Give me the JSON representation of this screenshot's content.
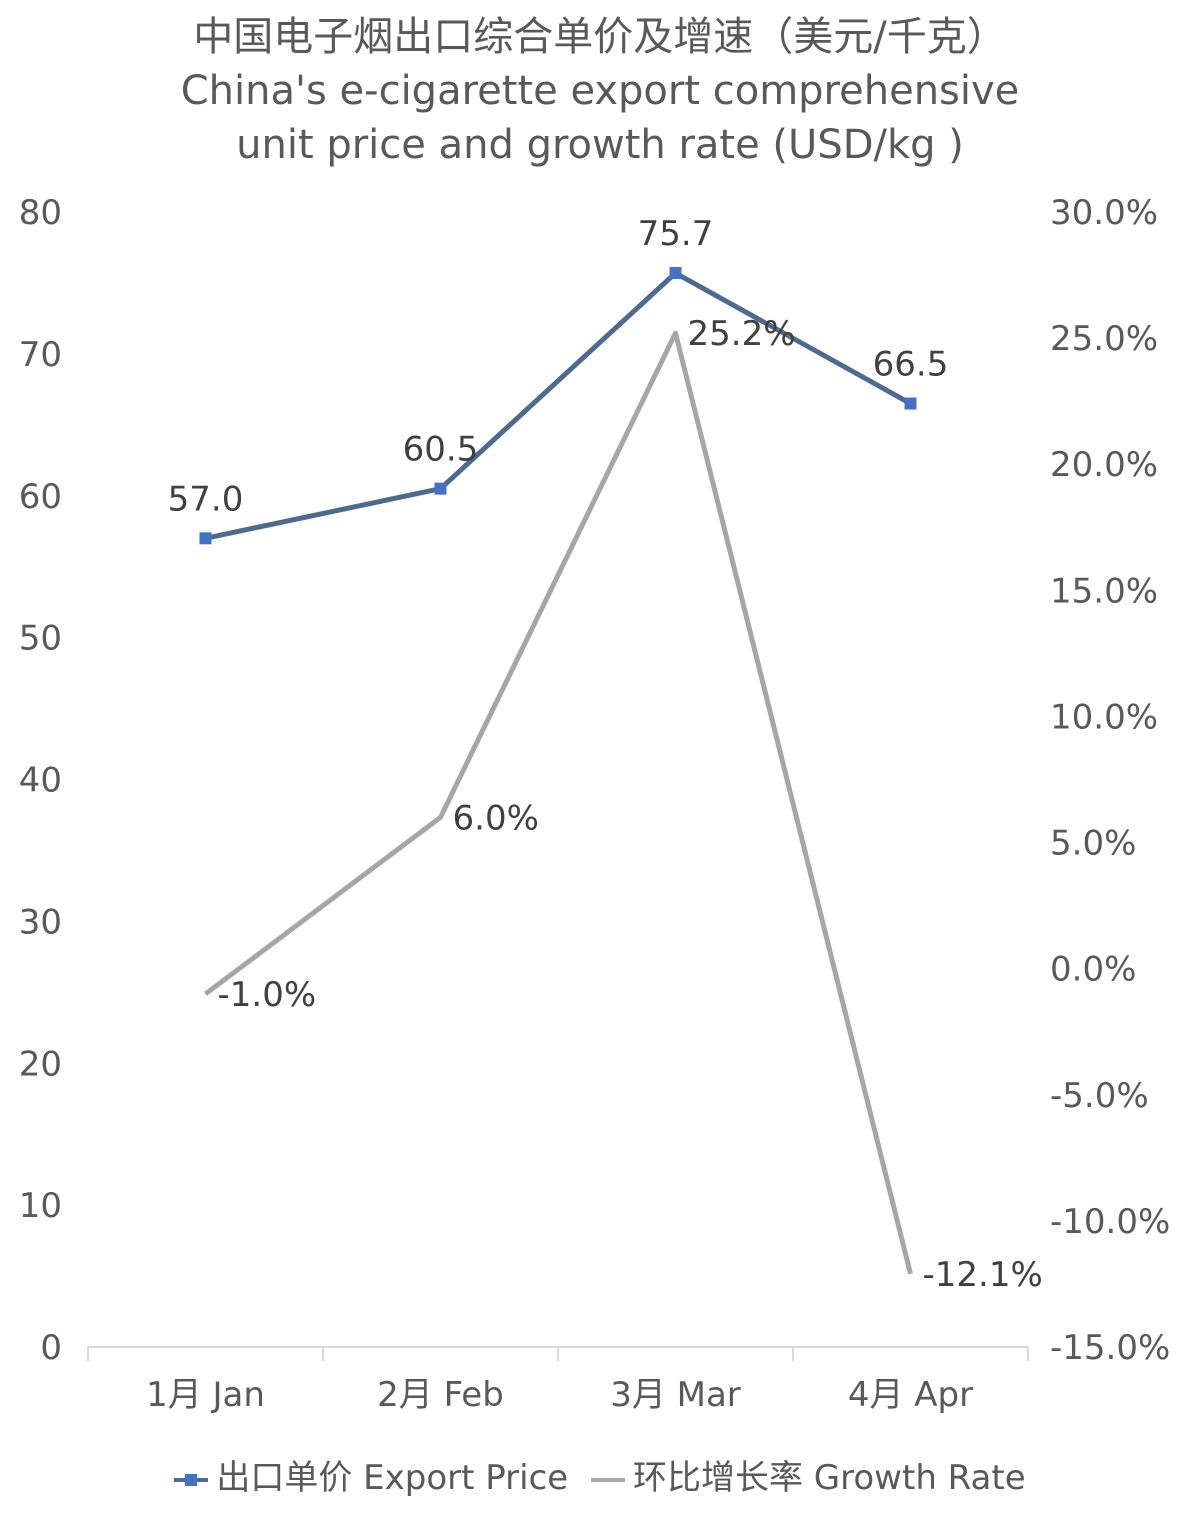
{
  "title": {
    "line1": "中国电子烟出口综合单价及增速（美元/千克）",
    "line2": "China's e-cigarette export comprehensive",
    "line3": "unit price and growth rate (USD/kg )"
  },
  "legend": {
    "price_label": "出口单价 Export Price",
    "growth_label": "环比增长率 Growth Rate"
  },
  "colors": {
    "price_line": "#4e6a8f",
    "price_marker": "#4472c4",
    "growth_line": "#a6a6a6",
    "axis": "#d9d9d9"
  },
  "chart_data": {
    "type": "line",
    "title": "中国电子烟出口综合单价及增速（美元/千克） China's e-cigarette export comprehensive unit price and growth rate (USD/kg )",
    "categories": [
      "1月 Jan",
      "2月 Feb",
      "3月 Mar",
      "4月 Apr"
    ],
    "series": [
      {
        "name": "出口单价 Export Price",
        "axis": "left",
        "values": [
          57.0,
          60.5,
          75.7,
          66.5
        ],
        "labels": [
          "57.0",
          "60.5",
          "75.7",
          "66.5"
        ],
        "marker": "square"
      },
      {
        "name": "环比增长率 Growth Rate",
        "axis": "right",
        "values": [
          -1.0,
          6.0,
          25.2,
          -12.1
        ],
        "labels": [
          "-1.0%",
          "6.0%",
          "25.2%",
          "-12.1%"
        ],
        "marker": "none"
      }
    ],
    "y_left": {
      "min": 0,
      "max": 80,
      "step": 10,
      "ticks": [
        "0",
        "10",
        "20",
        "30",
        "40",
        "50",
        "60",
        "70",
        "80"
      ]
    },
    "y_right": {
      "min": -15,
      "max": 30,
      "step": 5,
      "ticks": [
        "-15.0%",
        "-10.0%",
        "-5.0%",
        "0.0%",
        "5.0%",
        "10.0%",
        "15.0%",
        "20.0%",
        "25.0%",
        "30.0%"
      ]
    },
    "grid": false,
    "legend_position": "bottom"
  }
}
